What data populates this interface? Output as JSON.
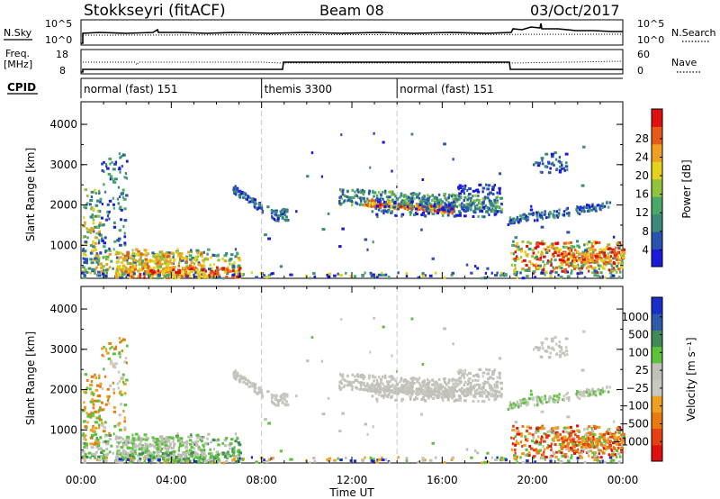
{
  "header": {
    "station": "Stokkseyri (fitACF)",
    "beam": "Beam 08",
    "date": "03/Oct/2017"
  },
  "colors": {
    "power_scale": [
      "#1a1adc",
      "#2a52b0",
      "#3a8a7a",
      "#4aa86a",
      "#8fc43c",
      "#e6d21a",
      "#f0a020",
      "#e85a18",
      "#e01010"
    ],
    "velocity_scale": [
      "#1830c8",
      "#2f5aa8",
      "#3f8a58",
      "#5cc23c",
      "#c0c0b8",
      "#c8c8c0",
      "#f0a020",
      "#e87a10",
      "#e84010",
      "#e01010"
    ],
    "grey_scatter": "#c0c0b8"
  },
  "chart_data": [
    {
      "type": "line",
      "panel": "noise",
      "left_labels": [
        "N.Sky"
      ],
      "left_ticks": [
        "10^5",
        "10^0"
      ],
      "right_labels": [
        "N.Search"
      ],
      "right_ticks": [
        "10^5",
        "10^0"
      ]
    },
    {
      "type": "line",
      "panel": "frequency",
      "left_labels": [
        "Freq.",
        "[MHz]"
      ],
      "left_ticks": [
        "18",
        "8"
      ],
      "right_labels": [
        "Nave"
      ],
      "right_ticks": [
        "60",
        "0"
      ]
    },
    {
      "type": "table",
      "panel": "cpid",
      "label": "CPID",
      "segments": [
        {
          "start": 0,
          "label": "normal (fast) 151"
        },
        {
          "start": 8,
          "label": "themis 3300"
        },
        {
          "start": 14,
          "label": "normal (fast) 151"
        }
      ]
    },
    {
      "type": "heatmap",
      "panel": "power",
      "ylabel": "Slant Range [km]",
      "y_ticks": [
        "1000",
        "2000",
        "3000",
        "4000"
      ],
      "colorbar_label": "Power [dB]",
      "colorbar_ticks": [
        "4",
        "8",
        "12",
        "16",
        "20",
        "24",
        "28"
      ]
    },
    {
      "type": "heatmap",
      "panel": "velocity",
      "ylabel": "Slant Range [km]",
      "y_ticks": [
        "1000",
        "2000",
        "3000",
        "4000"
      ],
      "colorbar_label": "Velocity [m s⁻¹]",
      "colorbar_ticks": [
        "1000",
        "500",
        "100",
        "25",
        "−25",
        "−100",
        "−500",
        "−1000"
      ],
      "x_ticks": [
        "00:00",
        "04:00",
        "08:00",
        "12:00",
        "16:00",
        "20:00",
        "00:00"
      ],
      "xlabel": "Time UT"
    }
  ]
}
